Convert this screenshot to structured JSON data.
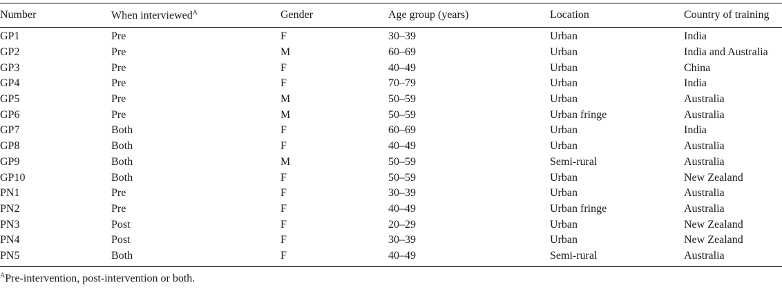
{
  "table": {
    "headers": {
      "number": "Number",
      "when": "When interviewed",
      "when_marker": "A",
      "gender": "Gender",
      "age": "Age group (years)",
      "location": "Location",
      "country": "Country of training"
    },
    "rows": [
      {
        "number": "GP1",
        "when": "Pre",
        "gender": "F",
        "age": "30–39",
        "location": "Urban",
        "country": "India"
      },
      {
        "number": "GP2",
        "when": "Pre",
        "gender": "M",
        "age": "60–69",
        "location": "Urban",
        "country": "India and Australia"
      },
      {
        "number": "GP3",
        "when": "Pre",
        "gender": "F",
        "age": "40–49",
        "location": "Urban",
        "country": "China"
      },
      {
        "number": "GP4",
        "when": "Pre",
        "gender": "F",
        "age": "70–79",
        "location": "Urban",
        "country": "India"
      },
      {
        "number": "GP5",
        "when": "Pre",
        "gender": "M",
        "age": "50–59",
        "location": "Urban",
        "country": "Australia"
      },
      {
        "number": "GP6",
        "when": "Pre",
        "gender": "M",
        "age": "50–59",
        "location": "Urban fringe",
        "country": "Australia"
      },
      {
        "number": "GP7",
        "when": "Both",
        "gender": "F",
        "age": "60–69",
        "location": "Urban",
        "country": "India"
      },
      {
        "number": "GP8",
        "when": "Both",
        "gender": "F",
        "age": "40–49",
        "location": "Urban",
        "country": "Australia"
      },
      {
        "number": "GP9",
        "when": "Both",
        "gender": "M",
        "age": "50–59",
        "location": "Semi-rural",
        "country": "Australia"
      },
      {
        "number": "GP10",
        "when": "Both",
        "gender": "F",
        "age": "50–59",
        "location": "Urban",
        "country": "New Zealand"
      },
      {
        "number": "PN1",
        "when": "Pre",
        "gender": "F",
        "age": "30–39",
        "location": "Urban",
        "country": "Australia"
      },
      {
        "number": "PN2",
        "when": "Pre",
        "gender": "F",
        "age": "40–49",
        "location": "Urban fringe",
        "country": "Australia"
      },
      {
        "number": "PN3",
        "when": "Post",
        "gender": "F",
        "age": "20–29",
        "location": "Urban",
        "country": "New Zealand"
      },
      {
        "number": "PN4",
        "when": "Post",
        "gender": "F",
        "age": "30–39",
        "location": "Urban",
        "country": "New Zealand"
      },
      {
        "number": "PN5",
        "when": "Both",
        "gender": "F",
        "age": "40–49",
        "location": "Semi-rural",
        "country": "Australia"
      }
    ]
  },
  "footnote": {
    "marker": "A",
    "text": "Pre-intervention, post-intervention or both."
  }
}
